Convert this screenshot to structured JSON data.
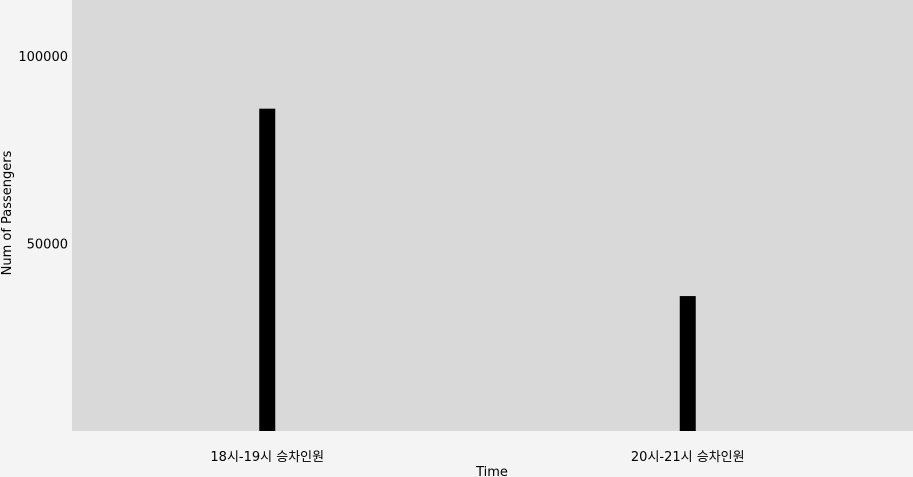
{
  "chart_data": {
    "type": "bar",
    "categories": [
      "18시-19시 승차인원",
      "20시-21시 승차인원"
    ],
    "values": [
      86000,
      36000
    ],
    "xlabel": "Time",
    "ylabel": "Num of Passengers",
    "yticks": [
      50000,
      100000
    ],
    "ylim": [
      0,
      115000
    ],
    "grid": false,
    "colors": {
      "plot_background": "#d9d9d9",
      "page_background": "#f4f4f4",
      "bar": "#000000"
    }
  }
}
